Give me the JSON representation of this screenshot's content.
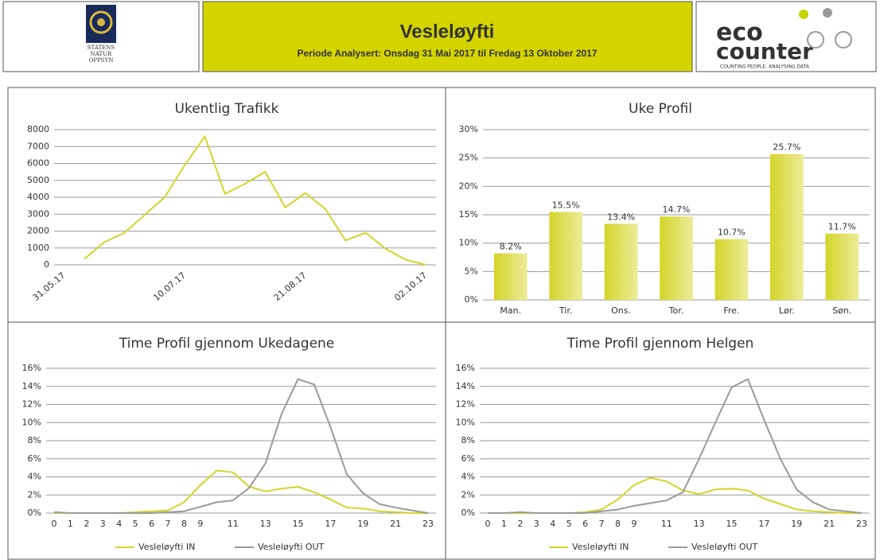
{
  "header": {
    "title": "Vesleløyfti",
    "subtitle": "Periode Analysert: Onsdag 31 Mai 2017 til Fredag 13 Oktober 2017",
    "left_logo": [
      "STATENS",
      "NATUR",
      "OPPSYN"
    ],
    "right_logo": {
      "brand_top": "eco",
      "brand_bottom": "counter",
      "tagline": "COUNTING PEOPLE. ANALYSING DATA"
    }
  },
  "chart_data": [
    {
      "type": "line",
      "title": "Ukentlig Trafikk",
      "categories": [
        "31.05.17",
        null,
        null,
        null,
        null,
        null,
        "10.07.17",
        null,
        null,
        null,
        null,
        null,
        "21.08.17",
        null,
        null,
        null,
        null,
        null,
        "02.10.17"
      ],
      "values": [
        null,
        350,
        1350,
        1900,
        2950,
        4000,
        5900,
        7600,
        4200,
        4800,
        5500,
        3400,
        4250,
        3300,
        1450,
        1900,
        950,
        300,
        0
      ],
      "color": "#d4d42a",
      "ylim": [
        0,
        8000
      ],
      "yticks": [
        0,
        1000,
        2000,
        3000,
        4000,
        5000,
        6000,
        7000,
        8000
      ],
      "grid": true
    },
    {
      "type": "bar",
      "title": "Uke Profil",
      "categories": [
        "Man.",
        "Tir.",
        "Ons.",
        "Tor.",
        "Fre.",
        "Lør.",
        "Søn."
      ],
      "values": [
        8.2,
        15.5,
        13.4,
        14.7,
        10.7,
        25.7,
        11.7
      ],
      "value_labels": [
        "8.2%",
        "15.5%",
        "13.4%",
        "14.7%",
        "10.7%",
        "25.7%",
        "11.7%"
      ],
      "color": "#d4d42a",
      "ylim": [
        0,
        30
      ],
      "yticks": [
        {
          "value": 0,
          "label": "0%"
        },
        {
          "value": 5,
          "label": "5%"
        },
        {
          "value": 10,
          "label": "10%"
        },
        {
          "value": 15,
          "label": "15%"
        },
        {
          "value": 20,
          "label": "20%"
        },
        {
          "value": 25,
          "label": "25%"
        },
        {
          "value": 30,
          "label": "30%"
        }
      ],
      "grid": true
    },
    {
      "type": "line",
      "title": "Time Profil gjennom Ukedagene",
      "x": [
        0,
        1,
        2,
        3,
        4,
        5,
        6,
        7,
        8,
        9,
        10,
        11,
        12,
        13,
        14,
        15,
        16,
        17,
        18,
        19,
        20,
        21,
        22,
        23
      ],
      "series": [
        {
          "name": "Vesleløyfti IN",
          "color": "#d4d42a",
          "values": [
            0,
            0,
            0,
            0,
            0,
            0.1,
            0.2,
            0.3,
            1.2,
            3.1,
            4.7,
            4.5,
            2.9,
            2.4,
            2.7,
            2.9,
            2.3,
            1.5,
            0.6,
            0.5,
            0.2,
            0.1,
            0,
            0
          ]
        },
        {
          "name": "Vesleløyfti OUT",
          "color": "#9a9a9a",
          "values": [
            0.1,
            0,
            0,
            0,
            0,
            0,
            0,
            0.1,
            0.2,
            0.7,
            1.2,
            1.4,
            2.8,
            5.5,
            11,
            14.8,
            14.2,
            9.5,
            4.3,
            2.2,
            1,
            0.6,
            0.3,
            0
          ]
        }
      ],
      "xlim": [
        0,
        23
      ],
      "xticks": [
        0,
        1,
        2,
        3,
        4,
        5,
        6,
        7,
        8,
        9,
        11,
        13,
        15,
        17,
        19,
        21,
        23
      ],
      "ylim": [
        0,
        16
      ],
      "yticks": [
        {
          "value": 0,
          "label": "0%"
        },
        {
          "value": 2,
          "label": "2%"
        },
        {
          "value": 4,
          "label": "4%"
        },
        {
          "value": 6,
          "label": "6%"
        },
        {
          "value": 8,
          "label": "8%"
        },
        {
          "value": 10,
          "label": "10%"
        },
        {
          "value": 12,
          "label": "12%"
        },
        {
          "value": 14,
          "label": "14%"
        },
        {
          "value": 16,
          "label": "16%"
        }
      ],
      "grid": true
    },
    {
      "type": "line",
      "title": "Time Profil gjennom Helgen",
      "x": [
        0,
        1,
        2,
        3,
        4,
        5,
        6,
        7,
        8,
        9,
        10,
        11,
        12,
        13,
        14,
        15,
        16,
        17,
        18,
        19,
        20,
        21,
        22,
        23
      ],
      "series": [
        {
          "name": "Vesleløyfti IN",
          "color": "#d4d42a",
          "values": [
            0,
            0,
            0,
            0,
            0,
            0,
            0.1,
            0.4,
            1.5,
            3.1,
            3.9,
            3.5,
            2.5,
            2.1,
            2.6,
            2.7,
            2.5,
            1.6,
            1,
            0.4,
            0.2,
            0.1,
            0,
            0
          ]
        },
        {
          "name": "Vesleløyfti OUT",
          "color": "#9a9a9a",
          "values": [
            0,
            0,
            0.1,
            0,
            0,
            0,
            0,
            0.2,
            0.4,
            0.8,
            1.1,
            1.4,
            2.3,
            6,
            10,
            13.9,
            14.8,
            10.3,
            6,
            2.6,
            1.2,
            0.4,
            0.2,
            0
          ]
        }
      ],
      "xlim": [
        0,
        23
      ],
      "xticks": [
        0,
        1,
        2,
        3,
        4,
        5,
        6,
        7,
        8,
        9,
        11,
        13,
        15,
        17,
        19,
        21,
        23
      ],
      "ylim": [
        0,
        16
      ],
      "yticks": [
        {
          "value": 0,
          "label": "0%"
        },
        {
          "value": 2,
          "label": "2%"
        },
        {
          "value": 4,
          "label": "4%"
        },
        {
          "value": 6,
          "label": "6%"
        },
        {
          "value": 8,
          "label": "8%"
        },
        {
          "value": 10,
          "label": "10%"
        },
        {
          "value": 12,
          "label": "12%"
        },
        {
          "value": 14,
          "label": "14%"
        },
        {
          "value": 16,
          "label": "16%"
        }
      ],
      "grid": true
    }
  ]
}
